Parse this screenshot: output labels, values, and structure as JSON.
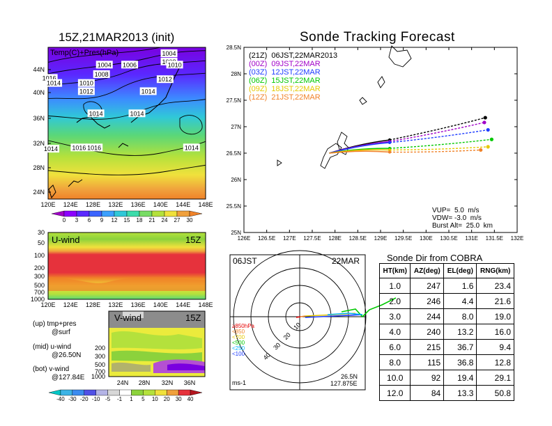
{
  "left_title": "15Z,21MAR2013 (init)",
  "right_title": "Sonde Tracking Forecast",
  "map_top": {
    "overlay_label": "Temp(C)+Pres(hPa)",
    "lat_ticks": [
      "44N",
      "40N",
      "36N",
      "32N",
      "28N",
      "24N"
    ],
    "lon_ticks": [
      "120E",
      "124E",
      "128E",
      "132E",
      "136E",
      "140E",
      "144E",
      "148E"
    ],
    "isobar_labels": [
      {
        "t": "1004",
        "x": 1145,
        "y": 44.9
      },
      {
        "t": "1008",
        "x": 1145.5,
        "y": 43.6
      },
      {
        "t": "1004",
        "x": 130,
        "y": 43.1
      },
      {
        "t": "1006",
        "x": 134.5,
        "y": 43.1
      },
      {
        "t": "1010",
        "x": 142.5,
        "y": 43.1
      },
      {
        "t": "1008",
        "x": 129.5,
        "y": 41.6
      },
      {
        "t": "1012",
        "x": 140.8,
        "y": 40.8
      },
      {
        "t": "1010",
        "x": 126.8,
        "y": 40.2
      },
      {
        "t": "1016",
        "x": 120.2,
        "y": 41.0
      },
      {
        "t": "1014",
        "x": 121.0,
        "y": 40.2
      },
      {
        "t": "1012",
        "x": 126.8,
        "y": 38.9
      },
      {
        "t": "1014",
        "x": 137.8,
        "y": 38.9
      },
      {
        "t": "1014",
        "x": 128.5,
        "y": 35.4
      },
      {
        "t": "1014",
        "x": 135.8,
        "y": 35.4
      },
      {
        "t": "1014",
        "x": 120.5,
        "y": 29.8
      },
      {
        "t": "1016",
        "x": 125.5,
        "y": 30.0
      },
      {
        "t": "1016",
        "x": 128.2,
        "y": 30.0
      },
      {
        "t": "1014",
        "x": 145.5,
        "y": 30.0
      }
    ],
    "colorbar_labels": [
      "0",
      "3",
      "6",
      "9",
      "12",
      "15",
      "18",
      "21",
      "24",
      "27",
      "30"
    ]
  },
  "uwind": {
    "label": "U-wind",
    "time": "15Z",
    "y_ticks": [
      "30",
      "50",
      "100",
      "200",
      "300",
      "500",
      "700",
      "1000"
    ],
    "x_ticks": [
      "120E",
      "124E",
      "128E",
      "132E",
      "136E",
      "140E",
      "144E",
      "148E"
    ]
  },
  "vwind": {
    "label": "V-wind",
    "time": "15Z",
    "y_ticks": [
      "200",
      "300",
      "500",
      "700",
      "1000"
    ],
    "x_ticks": [
      "24N",
      "28N",
      "32N",
      "36N"
    ],
    "colorbar_labels": [
      "-40",
      "-30",
      "-20",
      "-10",
      "-5",
      "-1",
      "1",
      "5",
      "10",
      "20",
      "30",
      "40"
    ]
  },
  "notes": [
    {
      "a": "(up) tmp+pres",
      "b": "@surf"
    },
    {
      "a": "(mid) u-wind",
      "b": "@26.50N"
    },
    {
      "a": "(bot) v-wind",
      "b": "@127.84E"
    }
  ],
  "chart_data": {
    "type": "line",
    "title": "Sonde Tracking Forecast",
    "xlim": [
      126,
      132
    ],
    "ylim": [
      25,
      28.5
    ],
    "x_ticks": [
      "126E",
      "126.5E",
      "127E",
      "127.5E",
      "128E",
      "128.5E",
      "129E",
      "129.5E",
      "130E",
      "130.5E",
      "131E",
      "131.5E",
      "132E"
    ],
    "y_ticks": [
      "25N",
      "25.5N",
      "26N",
      "26.5N",
      "27N",
      "27.5N",
      "28N",
      "28.5N"
    ],
    "launch": {
      "lon": 127.875,
      "lat": 26.5
    },
    "legend_placement": "top-left",
    "series": [
      {
        "name": "(21Z)  06JST,22MAR2013",
        "color": "#000000",
        "end": [
          131.3,
          27.17
        ],
        "mark": [
          129.2,
          26.75
        ]
      },
      {
        "name": "(00Z)  09JST,22MAR",
        "color": "#a000c8",
        "end": [
          131.28,
          27.08
        ],
        "mark": [
          129.2,
          26.72
        ]
      },
      {
        "name": "(03Z)  12JST,22MAR",
        "color": "#1e3cff",
        "end": [
          131.36,
          26.94
        ],
        "mark": [
          129.2,
          26.7
        ]
      },
      {
        "name": "(06Z)  15JST,22MAR",
        "color": "#00c800",
        "end": [
          131.44,
          26.76
        ],
        "mark": [
          129.2,
          26.59
        ]
      },
      {
        "name": "(09Z)  18JST,22MAR",
        "color": "#e6c800",
        "end": [
          131.36,
          26.62
        ],
        "mark": [
          129.2,
          26.56
        ]
      },
      {
        "name": "(12Z)  21JST,22MAR",
        "color": "#f08228",
        "end": [
          131.2,
          26.56
        ],
        "mark": [
          129.2,
          26.52
        ]
      }
    ],
    "params": [
      "VUP=  5.0  m/s",
      "VDW= -3.0  m/s",
      "Burst Alt=  25.0  km"
    ]
  },
  "polar": {
    "time": "06JST",
    "date": "22MAR",
    "ring_labels": [
      "10",
      "20",
      "30",
      "40"
    ],
    "pressure_legend": [
      "≥850hPa",
      "<850",
      "<700",
      "<500",
      "<250",
      "<100"
    ],
    "pressure_colors": [
      "#e60000",
      "#f08228",
      "#e6c800",
      "#00c800",
      "#00b4ff",
      "#1e3cff"
    ],
    "location": [
      "26.5N",
      "127.875E"
    ],
    "unit": "ms-1"
  },
  "direction_table": {
    "title": "Sonde Dir from COBRA",
    "headers": [
      "HT(km)",
      "AZ(deg)",
      "EL(deg)",
      "RNG(km)"
    ],
    "rows": [
      [
        "1.0",
        "247",
        "1.6",
        "23.4"
      ],
      [
        "2.0",
        "246",
        "4.4",
        "21.6"
      ],
      [
        "3.0",
        "244",
        "8.0",
        "19.0"
      ],
      [
        "4.0",
        "240",
        "13.2",
        "16.0"
      ],
      [
        "6.0",
        "215",
        "36.7",
        "9.4"
      ],
      [
        "8.0",
        "115",
        "36.8",
        "12.8"
      ],
      [
        "10.0",
        "92",
        "19.4",
        "29.1"
      ],
      [
        "12.0",
        "84",
        "13.3",
        "50.8"
      ]
    ]
  }
}
